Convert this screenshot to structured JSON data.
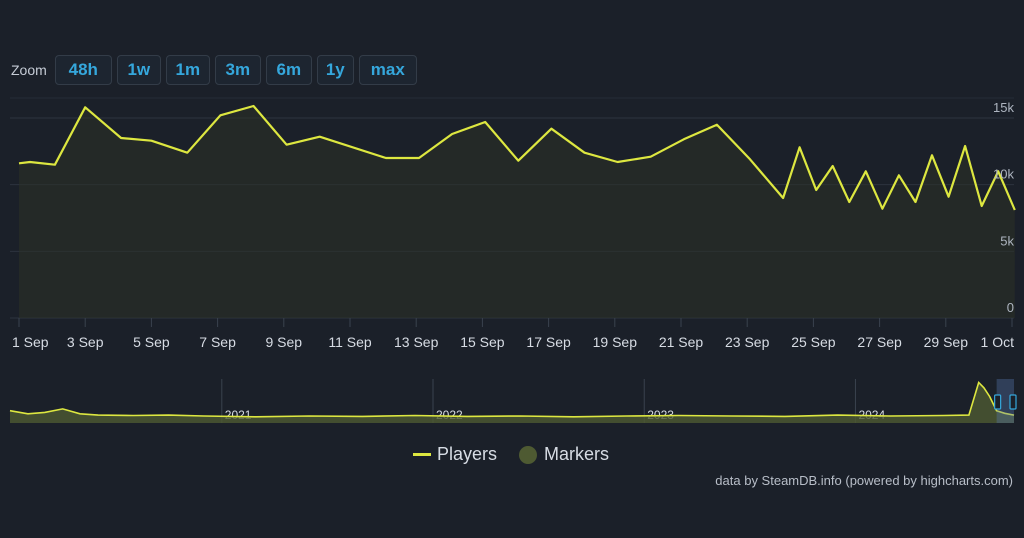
{
  "zoom": {
    "label": "Zoom",
    "buttons": [
      "48h",
      "1w",
      "1m",
      "3m",
      "6m",
      "1y",
      "max"
    ]
  },
  "legend": {
    "players": "Players",
    "markers": "Markers"
  },
  "credit": "data by SteamDB.info (powered by highcharts.com)",
  "colors": {
    "background": "#1b2029",
    "line": "#dde740",
    "area": "#2b3127",
    "grid": "#2c333e",
    "button_text": "#35a7dc"
  },
  "chart_data": [
    {
      "type": "line",
      "x_tick_labels": [
        "1 Sep",
        "3 Sep",
        "5 Sep",
        "7 Sep",
        "9 Sep",
        "11 Sep",
        "13 Sep",
        "15 Sep",
        "17 Sep",
        "19 Sep",
        "21 Sep",
        "23 Sep",
        "25 Sep",
        "27 Sep",
        "29 Sep",
        "1 Oct"
      ],
      "y_tick_labels": [
        "0",
        "5k",
        "10k",
        "15k"
      ],
      "ylim": [
        0,
        16500
      ],
      "grid": true,
      "series": [
        {
          "name": "Players",
          "points": [
            [
              "2024-09-01 00:00",
              11600
            ],
            [
              "2024-09-01 08:00",
              11700
            ],
            [
              "2024-09-02 02:00",
              11500
            ],
            [
              "2024-09-03 00:00",
              15800
            ],
            [
              "2024-09-04 02:00",
              13500
            ],
            [
              "2024-09-05 00:00",
              13300
            ],
            [
              "2024-09-06 02:00",
              12400
            ],
            [
              "2024-09-07 02:00",
              15200
            ],
            [
              "2024-09-08 02:00",
              15900
            ],
            [
              "2024-09-09 02:00",
              13000
            ],
            [
              "2024-09-10 02:00",
              13600
            ],
            [
              "2024-09-12 02:00",
              12000
            ],
            [
              "2024-09-13 02:00",
              12000
            ],
            [
              "2024-09-14 02:00",
              13800
            ],
            [
              "2024-09-15 02:00",
              14700
            ],
            [
              "2024-09-16 02:00",
              11800
            ],
            [
              "2024-09-17 02:00",
              14200
            ],
            [
              "2024-09-18 02:00",
              12400
            ],
            [
              "2024-09-19 02:00",
              11700
            ],
            [
              "2024-09-20 02:00",
              12100
            ],
            [
              "2024-09-21 02:00",
              13400
            ],
            [
              "2024-09-22 02:00",
              14500
            ],
            [
              "2024-09-23 02:00",
              11900
            ],
            [
              "2024-09-24 02:00",
              9000
            ],
            [
              "2024-09-24 14:00",
              12800
            ],
            [
              "2024-09-25 02:00",
              9600
            ],
            [
              "2024-09-25 14:00",
              11400
            ],
            [
              "2024-09-26 02:00",
              8700
            ],
            [
              "2024-09-26 14:00",
              11000
            ],
            [
              "2024-09-27 02:00",
              8200
            ],
            [
              "2024-09-27 14:00",
              10700
            ],
            [
              "2024-09-28 02:00",
              8700
            ],
            [
              "2024-09-28 14:00",
              12200
            ],
            [
              "2024-09-29 02:00",
              9100
            ],
            [
              "2024-09-29 14:00",
              12900
            ],
            [
              "2024-09-30 02:00",
              8400
            ],
            [
              "2024-09-30 14:00",
              11000
            ],
            [
              "2024-10-01 02:00",
              8100
            ]
          ]
        }
      ]
    },
    {
      "type": "area",
      "x_tick_labels": [
        "2021",
        "2022",
        "2023",
        "2024"
      ],
      "series": [
        {
          "name": "Players",
          "points": [
            [
              "2020-01-01",
              14000
            ],
            [
              "2020-02-01",
              10500
            ],
            [
              "2020-03-01",
              12000
            ],
            [
              "2020-04-01",
              16000
            ],
            [
              "2020-05-01",
              10500
            ],
            [
              "2020-06-01",
              9000
            ],
            [
              "2020-08-01",
              8500
            ],
            [
              "2020-10-01",
              9000
            ],
            [
              "2020-12-01",
              8000
            ],
            [
              "2021-03-01",
              7000
            ],
            [
              "2021-06-01",
              8000
            ],
            [
              "2021-09-01",
              7500
            ],
            [
              "2021-12-01",
              8500
            ],
            [
              "2022-03-01",
              7500
            ],
            [
              "2022-06-01",
              8000
            ],
            [
              "2022-09-01",
              7000
            ],
            [
              "2022-12-01",
              8000
            ],
            [
              "2023-03-01",
              8500
            ],
            [
              "2023-06-01",
              8000
            ],
            [
              "2023-09-01",
              7500
            ],
            [
              "2023-12-01",
              9000
            ],
            [
              "2024-03-01",
              8000
            ],
            [
              "2024-06-01",
              8500
            ],
            [
              "2024-07-15",
              9000
            ],
            [
              "2024-08-01",
              46000
            ],
            [
              "2024-08-10",
              40000
            ],
            [
              "2024-08-20",
              30000
            ],
            [
              "2024-09-01",
              14000
            ],
            [
              "2024-09-15",
              11000
            ],
            [
              "2024-10-01",
              9000
            ]
          ]
        }
      ]
    }
  ]
}
